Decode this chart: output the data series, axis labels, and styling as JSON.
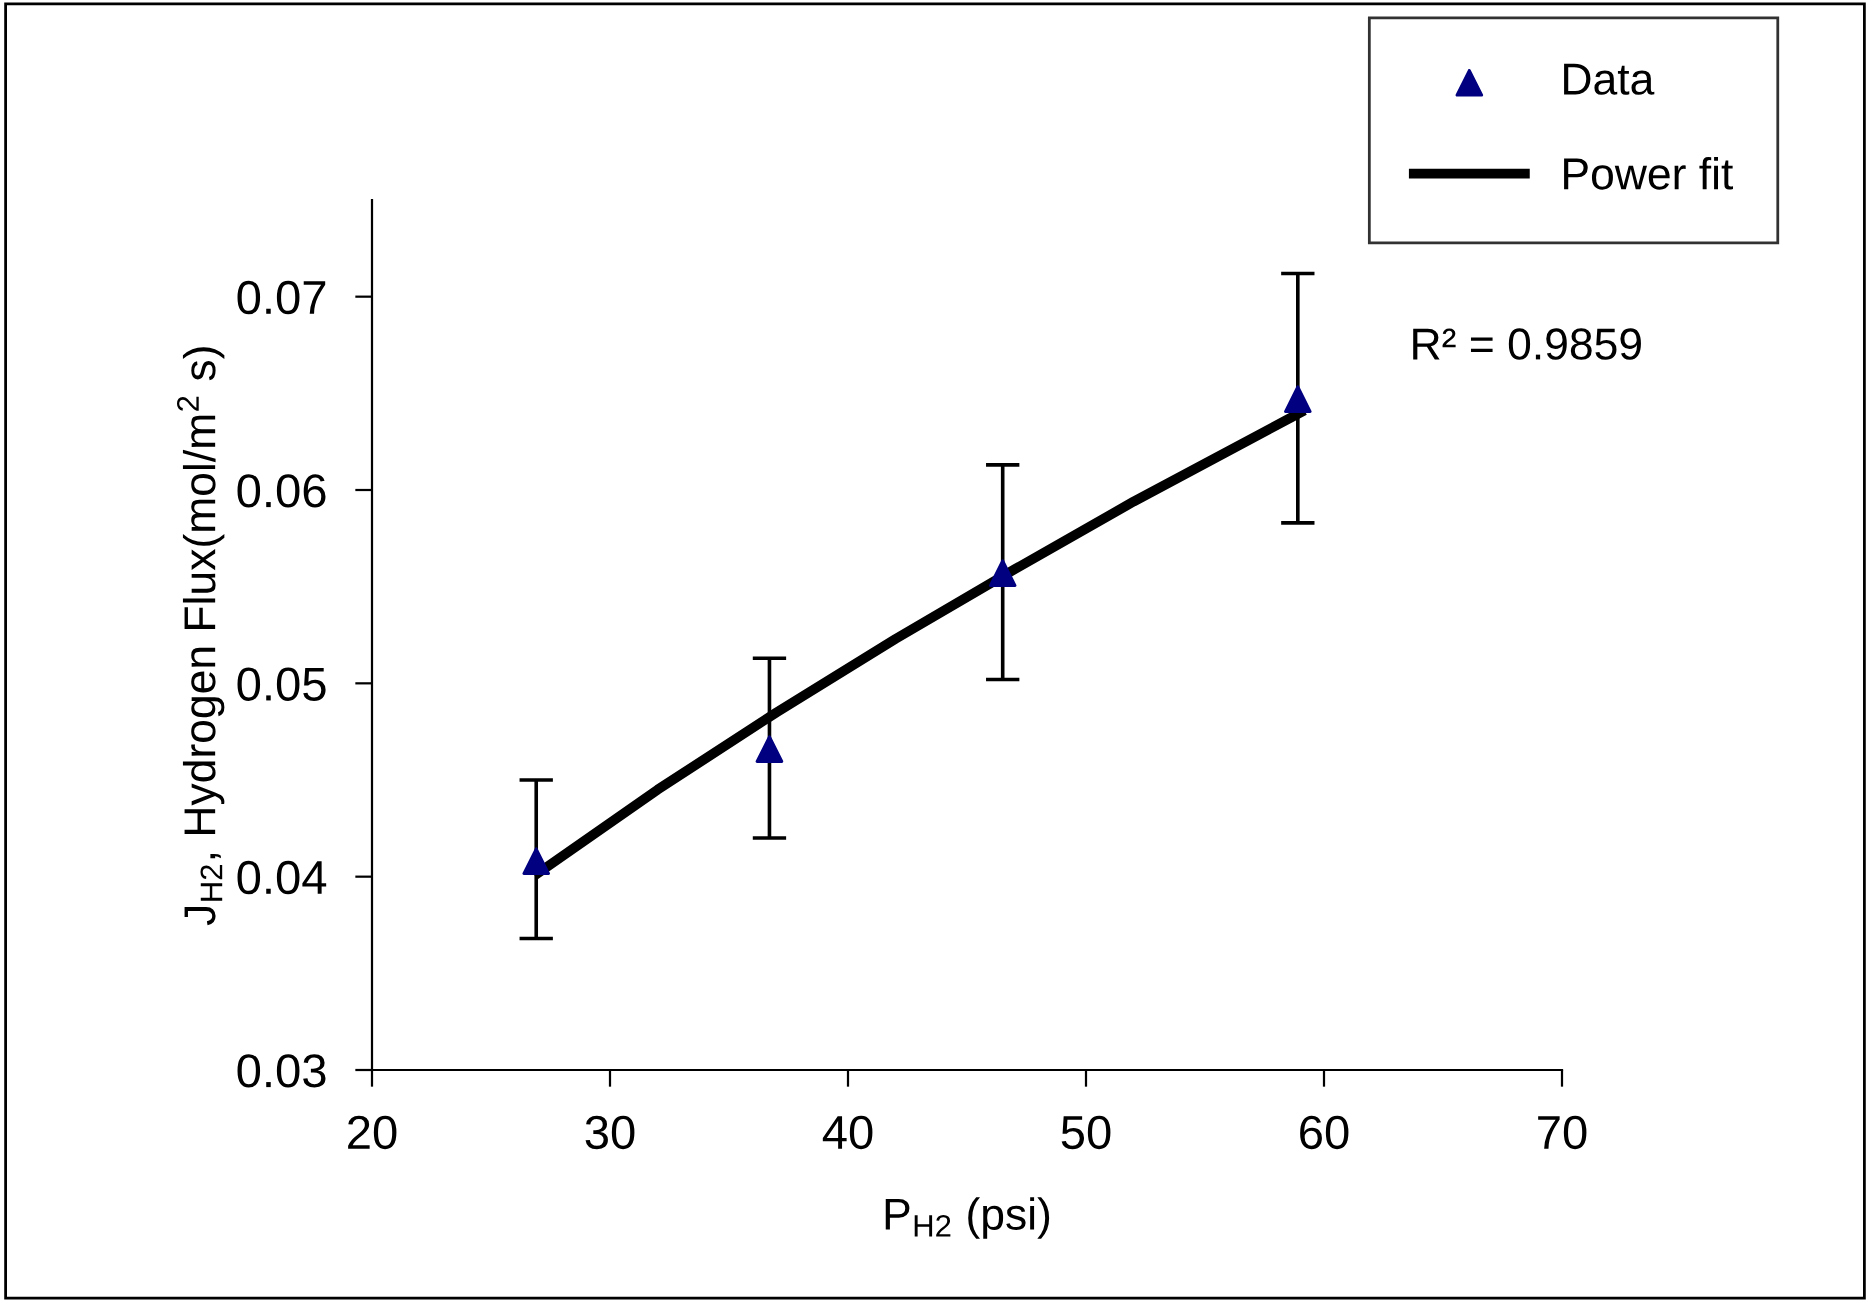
{
  "chart_data": {
    "type": "scatter",
    "xlabel": "P$_{H2}$ (psi)",
    "ylabel": "J$_{H2}$, Hydrogen Flux(mol/m$^{2}$ s)",
    "xlim": [
      20,
      70
    ],
    "xticks": [
      20,
      30,
      40,
      50,
      60,
      70
    ],
    "ylim": [
      0.03,
      0.075
    ],
    "yticks": [
      0.03,
      0.04,
      0.05,
      0.06,
      0.07
    ],
    "grid": false,
    "legend": "top right",
    "annotations": [
      "R² = 0.9859"
    ],
    "series": [
      {
        "name": "Data",
        "marker": "triangle",
        "color": "#000080",
        "x": [
          26.9,
          36.7,
          46.5,
          58.9
        ],
        "values": [
          0.0408,
          0.0466,
          0.0557,
          0.0647
        ],
        "errors": [
          [
            0.0368,
            0.045
          ],
          [
            0.042,
            0.0513
          ],
          [
            0.0502,
            0.0613
          ],
          [
            0.0583,
            0.0712
          ]
        ]
      },
      {
        "name": "Power fit",
        "type": "line",
        "line_style": "solid",
        "color": "#000000",
        "x": [
          27,
          32,
          37,
          42,
          47,
          52,
          59
        ],
        "values": [
          0.0402,
          0.0445,
          0.0485,
          0.0523,
          0.0559,
          0.0594,
          0.064
        ]
      }
    ]
  }
}
